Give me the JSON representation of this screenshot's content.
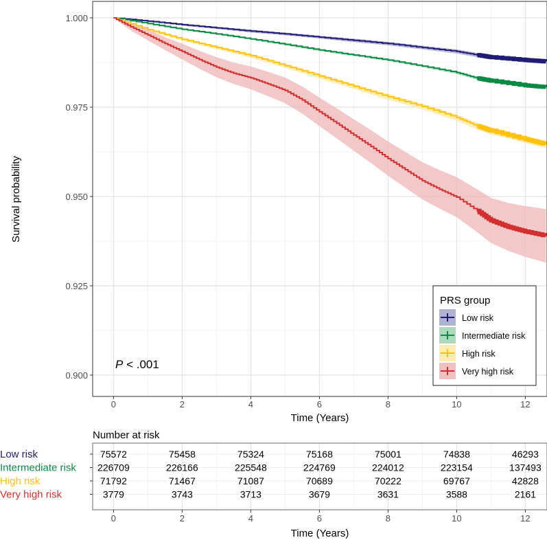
{
  "chart_data": {
    "type": "line",
    "subtype": "kaplan-meier",
    "xlabel": "Time (Years)",
    "ylabel": "Survival probability",
    "xlim": [
      -0.6,
      12.6
    ],
    "ylim": [
      0.894,
      1.0025
    ],
    "xticks": [
      0,
      2,
      4,
      6,
      8,
      10,
      12
    ],
    "yticks": [
      0.9,
      0.925,
      0.95,
      0.975,
      1.0
    ],
    "ytick_labels": [
      "0.900",
      "0.925",
      "0.950",
      "0.975",
      "1.000"
    ],
    "grid": true,
    "annotation": {
      "prefix": "P",
      "text": " < .001"
    },
    "legend": {
      "title": "PRS group",
      "placement": "bottom-right"
    },
    "series": [
      {
        "name": "Low risk",
        "color": "#1F1C73",
        "band": "#A9A8CC",
        "x": [
          0,
          1,
          2,
          3,
          4,
          5,
          6,
          7,
          8,
          9,
          10,
          10.6,
          11,
          12,
          12.6
        ],
        "y": [
          1.0,
          0.9991,
          0.9981,
          0.9972,
          0.9963,
          0.9955,
          0.9946,
          0.9937,
          0.9928,
          0.9917,
          0.9906,
          0.9896,
          0.989,
          0.9882,
          0.9878
        ],
        "ci": [
          0,
          0.0002,
          0.0003,
          0.0003,
          0.0004,
          0.0004,
          0.0004,
          0.0005,
          0.0005,
          0.0005,
          0.0006,
          0.0006,
          0.0006,
          0.0007,
          0.0007
        ]
      },
      {
        "name": "Intermediate risk",
        "color": "#0B8A44",
        "band": "#A5D5B6",
        "x": [
          0,
          1,
          2,
          3,
          4,
          5,
          6,
          7,
          8,
          9,
          10,
          10.6,
          11,
          12,
          12.6
        ],
        "y": [
          1.0,
          0.9984,
          0.9968,
          0.9955,
          0.9941,
          0.9926,
          0.991,
          0.9896,
          0.9882,
          0.9865,
          0.9847,
          0.9831,
          0.9824,
          0.9811,
          0.9806
        ],
        "ci": [
          0,
          0.0001,
          0.0002,
          0.0002,
          0.0002,
          0.0003,
          0.0003,
          0.0003,
          0.0003,
          0.0003,
          0.0004,
          0.0004,
          0.0004,
          0.0004,
          0.0004
        ]
      },
      {
        "name": "High risk",
        "color": "#FFC20E",
        "band": "#FFE8A6",
        "x": [
          0,
          1,
          2,
          3,
          4,
          5,
          6,
          7,
          8,
          9,
          10,
          10.6,
          11,
          12,
          12.6
        ],
        "y": [
          1.0,
          0.9967,
          0.994,
          0.9917,
          0.9894,
          0.9866,
          0.9837,
          0.9808,
          0.9779,
          0.9752,
          0.9721,
          0.9697,
          0.9684,
          0.966,
          0.9646
        ],
        "ci": [
          0,
          0.0003,
          0.0004,
          0.0005,
          0.0006,
          0.0006,
          0.0007,
          0.0007,
          0.0008,
          0.0008,
          0.0009,
          0.0009,
          0.001,
          0.001,
          0.0011
        ]
      },
      {
        "name": "Very high risk",
        "color": "#D32F2F",
        "band": "#EFBABA",
        "x": [
          0,
          0.5,
          1,
          1.5,
          2,
          2.5,
          3,
          3.5,
          4,
          4.5,
          5,
          5.5,
          6,
          6.5,
          7,
          7.5,
          8,
          8.5,
          9,
          9.5,
          10,
          10.6,
          11,
          11.5,
          12,
          12.6
        ],
        "y": [
          1.0,
          0.9975,
          0.9952,
          0.9928,
          0.9906,
          0.9883,
          0.9862,
          0.9845,
          0.9832,
          0.9815,
          0.9797,
          0.977,
          0.9737,
          0.9705,
          0.9672,
          0.964,
          0.9606,
          0.9575,
          0.9544,
          0.952,
          0.9498,
          0.946,
          0.9433,
          0.9415,
          0.9402,
          0.939
        ],
        "ci": [
          0,
          0.001,
          0.0015,
          0.0018,
          0.0022,
          0.0025,
          0.0028,
          0.003,
          0.0032,
          0.0034,
          0.0036,
          0.0038,
          0.004,
          0.0042,
          0.0044,
          0.0046,
          0.0048,
          0.005,
          0.0052,
          0.0054,
          0.0056,
          0.006,
          0.0063,
          0.0067,
          0.0071,
          0.0075
        ]
      }
    ],
    "risk_table": {
      "title": "Number at risk",
      "xlabel": "Time (Years)",
      "times": [
        0,
        2,
        4,
        6,
        8,
        10,
        12
      ],
      "rows": [
        {
          "label": "Low risk",
          "color": "#1F1C73",
          "values": [
            "75572",
            "75458",
            "75324",
            "75168",
            "75001",
            "74838",
            "46293"
          ]
        },
        {
          "label": "Intermediate risk",
          "color": "#0B8A44",
          "values": [
            "226709",
            "226166",
            "225548",
            "224769",
            "224012",
            "223154",
            "137493"
          ]
        },
        {
          "label": "High risk",
          "color": "#FFC20E",
          "values": [
            "71792",
            "71467",
            "71087",
            "70689",
            "70222",
            "69767",
            "42828"
          ]
        },
        {
          "label": "Very high risk",
          "color": "#D32F2F",
          "values": [
            "3779",
            "3743",
            "3713",
            "3679",
            "3631",
            "3588",
            "2161"
          ]
        }
      ]
    }
  }
}
